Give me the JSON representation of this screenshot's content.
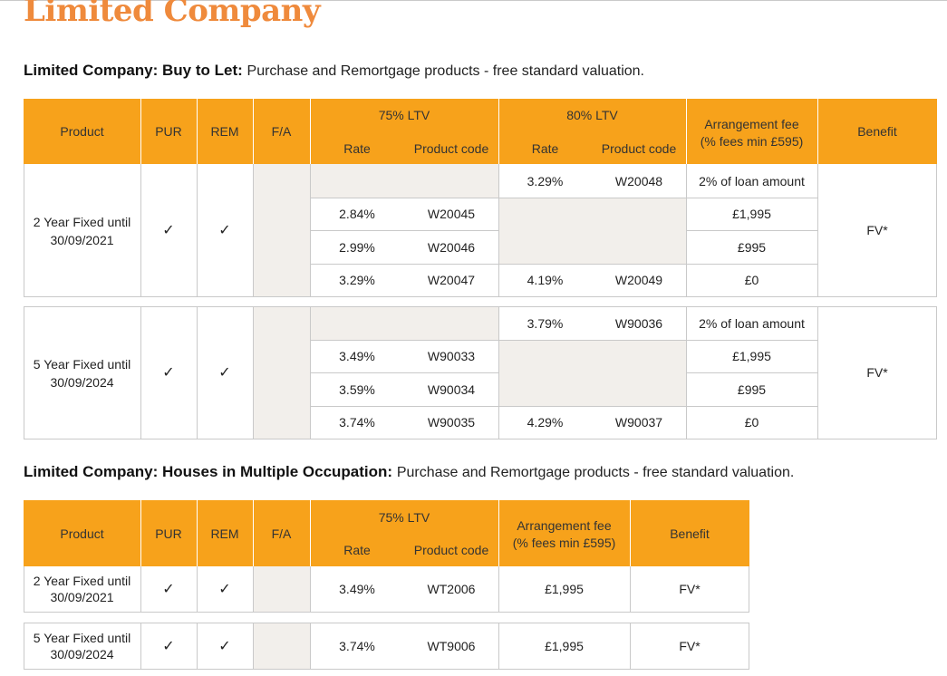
{
  "page_title": "Limited Company",
  "btl": {
    "heading_bold": "Limited Company: Buy to Let:",
    "heading_rest": "Purchase and Remortgage products - free standard valuation.",
    "headers": {
      "product": "Product",
      "pur": "PUR",
      "rem": "REM",
      "fa": "F/A",
      "ltv75": "75% LTV",
      "ltv80": "80% LTV",
      "rate": "Rate",
      "code": "Product code",
      "fee_line1": "Arrangement fee",
      "fee_line2": "(% fees min £595)",
      "benefit": "Benefit"
    },
    "groups": [
      {
        "product_line1": "2 Year Fixed until",
        "product_line2": "30/09/2021",
        "pur": "✓",
        "rem": "✓",
        "benefit": "FV*",
        "rows": [
          {
            "rate75": "",
            "code75": "",
            "rate80": "3.29%",
            "code80": "W20048",
            "fee": "2% of loan amount"
          },
          {
            "rate75": "2.84%",
            "code75": "W20045",
            "rate80": "",
            "code80": "",
            "fee": "£1,995"
          },
          {
            "rate75": "2.99%",
            "code75": "W20046",
            "rate80": "",
            "code80": "",
            "fee": "£995"
          },
          {
            "rate75": "3.29%",
            "code75": "W20047",
            "rate80": "4.19%",
            "code80": "W20049",
            "fee": "£0"
          }
        ]
      },
      {
        "product_line1": "5 Year Fixed until",
        "product_line2": "30/09/2024",
        "pur": "✓",
        "rem": "✓",
        "benefit": "FV*",
        "rows": [
          {
            "rate75": "",
            "code75": "",
            "rate80": "3.79%",
            "code80": "W90036",
            "fee": "2% of loan amount"
          },
          {
            "rate75": "3.49%",
            "code75": "W90033",
            "rate80": "",
            "code80": "",
            "fee": "£1,995"
          },
          {
            "rate75": "3.59%",
            "code75": "W90034",
            "rate80": "",
            "code80": "",
            "fee": "£995"
          },
          {
            "rate75": "3.74%",
            "code75": "W90035",
            "rate80": "4.29%",
            "code80": "W90037",
            "fee": "£0"
          }
        ]
      }
    ]
  },
  "hmo": {
    "heading_bold": "Limited Company: Houses in Multiple Occupation:",
    "heading_rest": "Purchase and Remortgage products - free standard valuation.",
    "headers": {
      "product": "Product",
      "pur": "PUR",
      "rem": "REM",
      "fa": "F/A",
      "ltv75": "75% LTV",
      "rate": "Rate",
      "code": "Product code",
      "fee_line1": "Arrangement fee",
      "fee_line2": "(% fees min £595)",
      "benefit": "Benefit"
    },
    "rows": [
      {
        "product_line1": "2 Year Fixed until",
        "product_line2": "30/09/2021",
        "pur": "✓",
        "rem": "✓",
        "rate": "3.49%",
        "code": "WT2006",
        "fee": "£1,995",
        "benefit": "FV*"
      },
      {
        "product_line1": "5 Year Fixed until",
        "product_line2": "30/09/2024",
        "pur": "✓",
        "rem": "✓",
        "rate": "3.74%",
        "code": "WT9006",
        "fee": "£1,995",
        "benefit": "FV*"
      }
    ]
  },
  "colors": {
    "accent": "#f7a21b",
    "title": "#ef8a3c",
    "shade": "#f2efeb",
    "grid": "#c9c9c9"
  }
}
